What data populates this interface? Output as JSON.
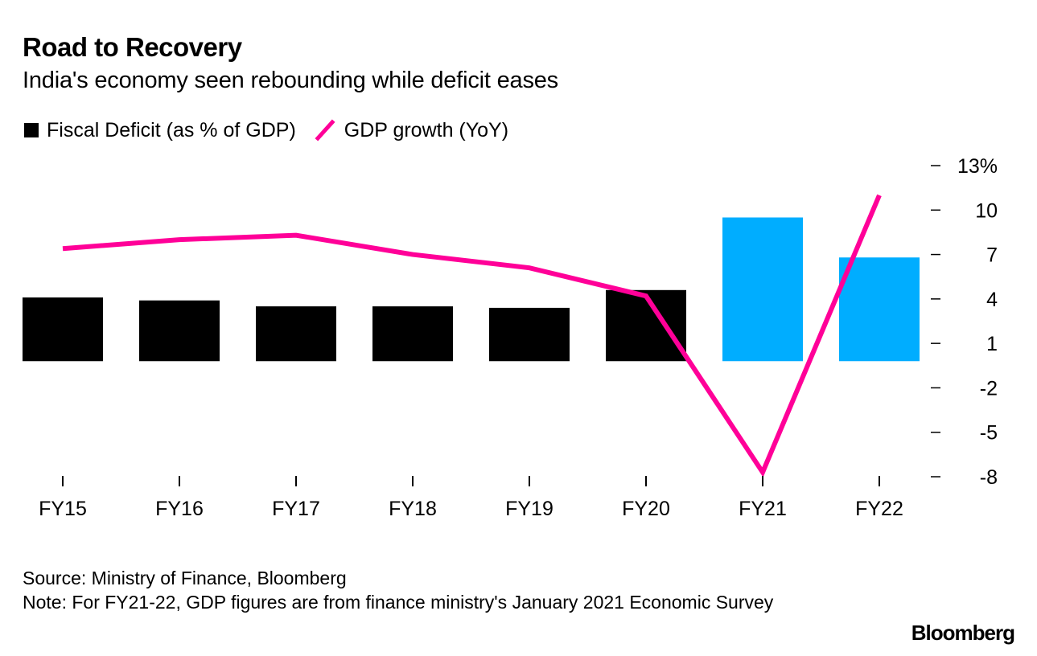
{
  "title": "Road to Recovery",
  "subtitle": "India's economy seen rebounding while deficit eases",
  "legend": {
    "bar_label": "Fiscal Deficit (as % of GDP)",
    "line_label": "GDP growth (YoY)"
  },
  "footer": {
    "source": "Source: Ministry of Finance, Bloomberg",
    "note": "Note: For FY21-22, GDP figures are from finance ministry's January 2021 Economic Survey"
  },
  "brand": "Bloomberg",
  "colors": {
    "bar_actual": "#000000",
    "bar_estimate": "#00adff",
    "line": "#ff0098",
    "text": "#000000"
  },
  "chart_data": {
    "type": "bar+line",
    "categories": [
      "FY15",
      "FY16",
      "FY17",
      "FY18",
      "FY19",
      "FY20",
      "FY21",
      "FY22"
    ],
    "series": [
      {
        "name": "Fiscal Deficit (as % of GDP)",
        "type": "bar",
        "values": [
          4.1,
          3.9,
          3.5,
          3.5,
          3.4,
          4.6,
          9.5,
          6.8
        ],
        "estimate_flags": [
          false,
          false,
          false,
          false,
          false,
          false,
          true,
          true
        ]
      },
      {
        "name": "GDP growth (YoY)",
        "type": "line",
        "values": [
          7.4,
          8.0,
          8.3,
          7.0,
          6.1,
          4.2,
          -7.7,
          11.0
        ]
      }
    ],
    "y_axis": {
      "position": "right",
      "range": [
        -8,
        13
      ],
      "ticks": [
        13,
        10,
        7,
        4,
        1,
        -2,
        -5,
        -8
      ],
      "tick_labels": [
        "13%",
        "10",
        "7",
        "4",
        "1",
        "-2",
        "-5",
        "-8"
      ]
    },
    "bar_baseline": -0.2,
    "grid": false,
    "legend_position": "top-left"
  }
}
